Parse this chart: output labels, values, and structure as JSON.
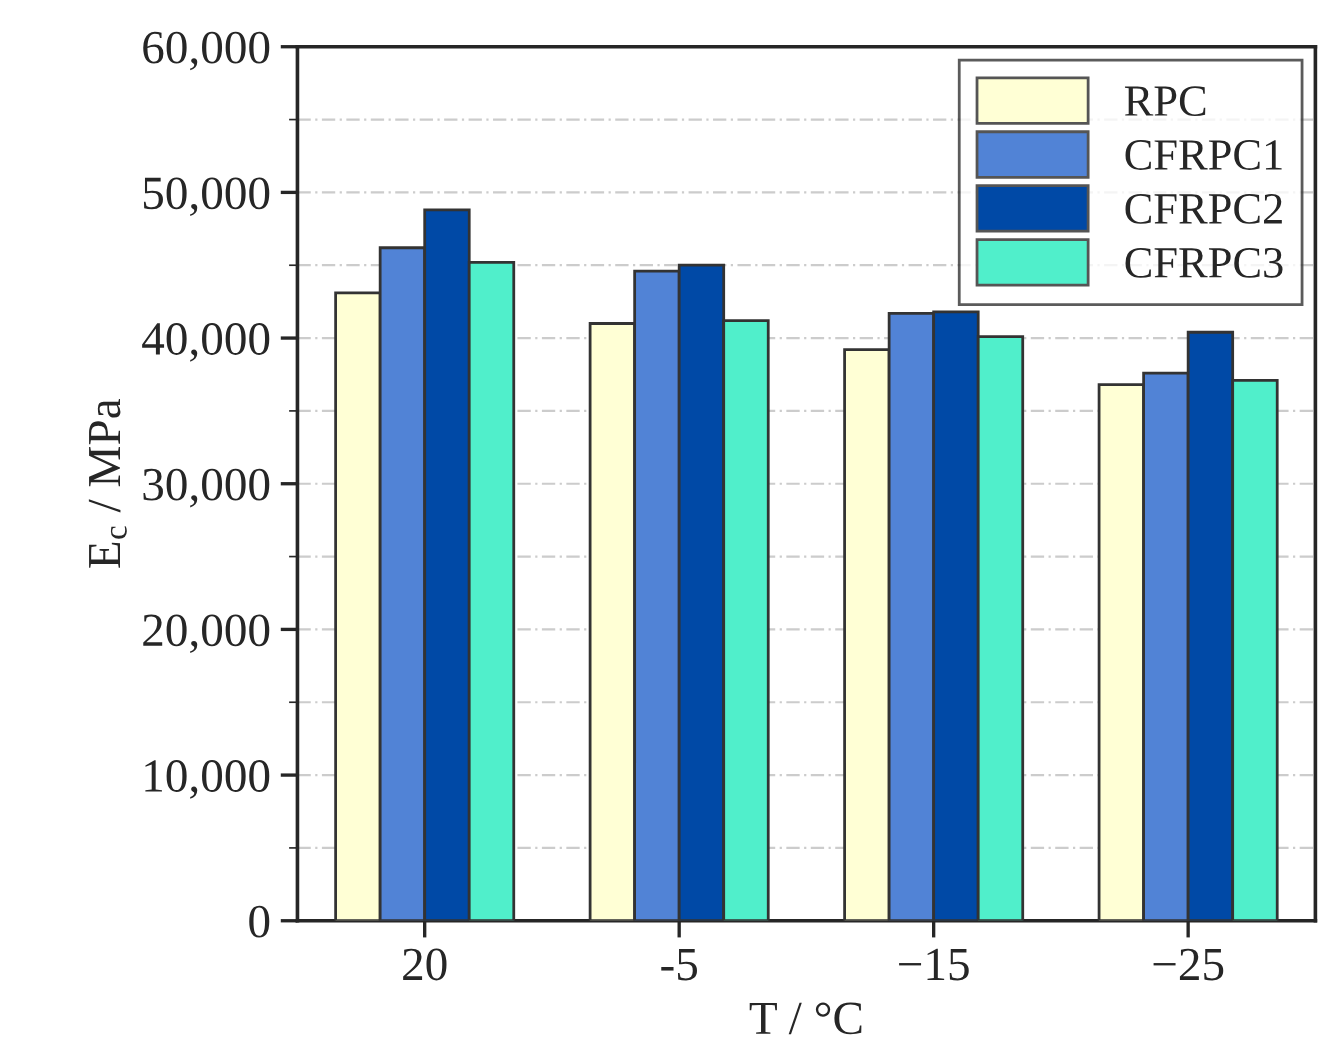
{
  "chart_data": {
    "type": "bar",
    "xlabel": "T / °C",
    "ylabel": "E$_{c}$ / MPa",
    "categories": [
      "20",
      "-5",
      "−15",
      "−25"
    ],
    "series": [
      {
        "name": "RPC",
        "color": "#ffffd5",
        "values": [
          43100,
          41000,
          39200,
          36800
        ]
      },
      {
        "name": "CFRPC1",
        "color": "#5183d6",
        "values": [
          46200,
          44600,
          41700,
          37600
        ]
      },
      {
        "name": "CFRPC2",
        "color": "#0049a6",
        "values": [
          48800,
          45000,
          41800,
          40400
        ]
      },
      {
        "name": "CFRPC3",
        "color": "#50efcb",
        "values": [
          45200,
          41200,
          40100,
          37100
        ]
      }
    ],
    "ylim": [
      0,
      60000
    ],
    "yticks": [
      {
        "value": 0,
        "label": "0"
      },
      {
        "value": 10000,
        "label": "10,000"
      },
      {
        "value": 20000,
        "label": "20,000"
      },
      {
        "value": 30000,
        "label": "30,000"
      },
      {
        "value": 40000,
        "label": "40,000"
      },
      {
        "value": 50000,
        "label": "50,000"
      },
      {
        "value": 60000,
        "label": "60,000"
      }
    ],
    "grid": "y",
    "legend": "top right"
  }
}
